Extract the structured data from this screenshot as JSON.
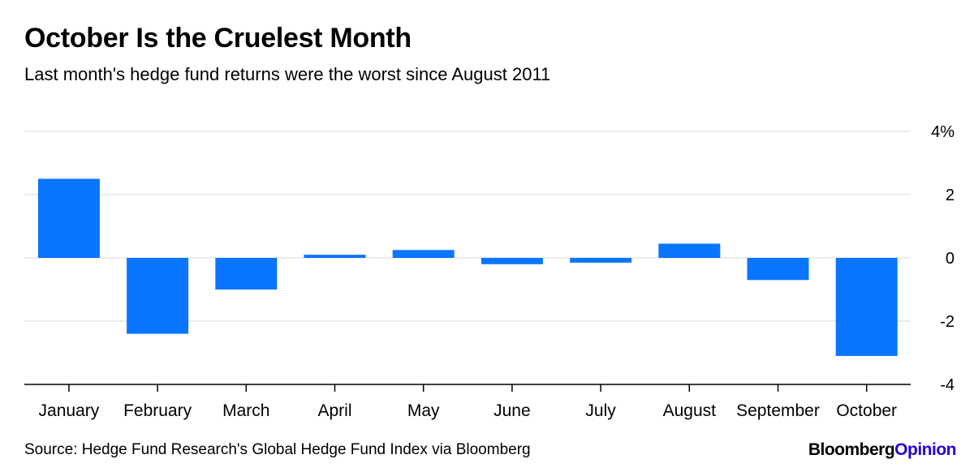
{
  "title": "October Is the Cruelest Month",
  "subtitle": "Last month's hedge fund returns were the worst since August 2011",
  "source": "Source: Hedge Fund Research's Global Hedge Fund Index via Bloomberg",
  "brand": {
    "part1": "Bloomberg",
    "part2": "Opinion"
  },
  "colors": {
    "bar": "#0a75ff",
    "grid": "#e6e6e6",
    "axis": "#000000",
    "brand_accent": "#2800d7"
  },
  "chart_data": {
    "type": "bar",
    "title": "October Is the Cruelest Month",
    "subtitle": "Last month's hedge fund returns were the worst since August 2011",
    "categories": [
      "January",
      "February",
      "March",
      "April",
      "May",
      "June",
      "July",
      "August",
      "September",
      "October"
    ],
    "values": [
      2.5,
      -2.4,
      -1.0,
      0.1,
      0.25,
      -0.2,
      -0.15,
      0.45,
      -0.7,
      -3.1
    ],
    "ylim": [
      -4,
      4
    ],
    "yticks": [
      4,
      2,
      0,
      -2,
      -4
    ],
    "ytick_labels": [
      "4%",
      "2",
      "0",
      "-2",
      "-4"
    ],
    "y_axis_position": "right",
    "grid": true,
    "xlabel": "",
    "ylabel": ""
  }
}
